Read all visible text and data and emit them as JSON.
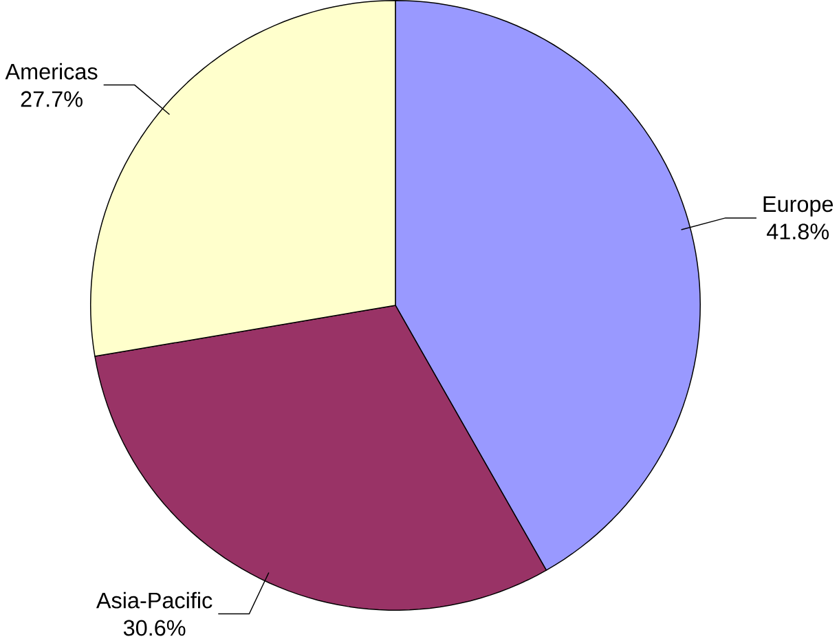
{
  "chart_data": {
    "type": "pie",
    "categories": [
      "Europe",
      "Asia-Pacific",
      "Americas"
    ],
    "values": [
      41.8,
      30.6,
      27.7
    ],
    "colors": [
      "#9999ff",
      "#993366",
      "#ffffcc"
    ],
    "value_labels": [
      "41.8%",
      "30.6%",
      "27.7%"
    ]
  }
}
